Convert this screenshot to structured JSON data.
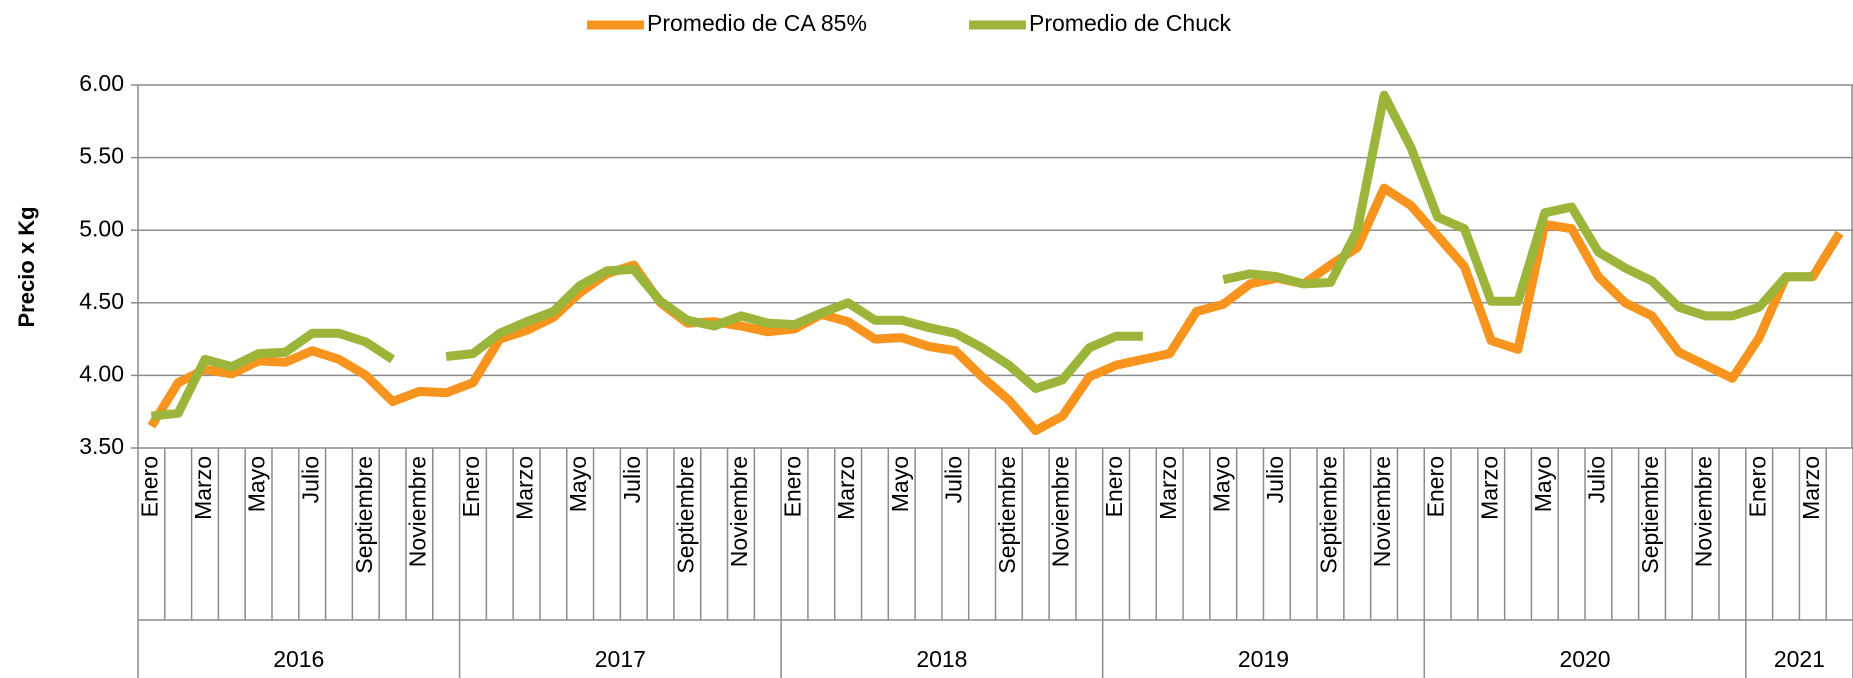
{
  "chart_data": {
    "type": "line",
    "y_label": "Precio x Kg",
    "categories": [
      "Enero",
      null,
      "Marzo",
      null,
      "Mayo",
      null,
      "Julio",
      null,
      "Septiembre",
      null,
      "Noviembre",
      null,
      "Enero",
      null,
      "Marzo",
      null,
      "Mayo",
      null,
      "Julio",
      null,
      "Septiembre",
      null,
      "Noviembre",
      null,
      "Enero",
      null,
      "Marzo",
      null,
      "Mayo",
      null,
      "Julio",
      null,
      "Septiembre",
      null,
      "Noviembre",
      null,
      "Enero",
      null,
      "Marzo",
      null,
      "Mayo",
      null,
      "Julio",
      null,
      "Septiembre",
      null,
      "Noviembre",
      null,
      "Enero",
      null,
      "Marzo",
      null,
      "Mayo",
      null,
      "Julio",
      null,
      "Septiembre",
      null,
      "Noviembre",
      null,
      "Enero",
      null,
      "Marzo",
      null
    ],
    "year_groups": [
      "2016",
      "2017",
      "2018",
      "2019",
      "2020",
      "2021"
    ],
    "series": [
      {
        "name": "Promedio de CA 85%",
        "color": "#f7941d",
        "values": [
          3.65,
          3.95,
          4.04,
          4.01,
          4.1,
          4.09,
          4.17,
          4.11,
          4.0,
          3.82,
          3.89,
          3.88,
          3.95,
          4.25,
          4.31,
          4.4,
          4.57,
          4.7,
          4.76,
          4.5,
          4.36,
          4.37,
          4.34,
          4.3,
          4.32,
          4.42,
          4.37,
          4.25,
          4.26,
          4.2,
          4.17,
          3.99,
          3.83,
          3.62,
          3.72,
          3.99,
          4.07,
          4.11,
          4.15,
          4.44,
          4.49,
          4.63,
          4.67,
          4.63,
          4.76,
          4.88,
          5.29,
          5.17,
          4.96,
          4.75,
          4.24,
          4.18,
          5.04,
          5.01,
          4.68,
          4.5,
          4.41,
          4.16,
          4.07,
          3.98,
          4.26,
          4.68,
          4.68,
          4.98
        ]
      },
      {
        "name": "Promedio de Chuck",
        "color": "#9bb53a",
        "values": [
          3.72,
          3.74,
          4.11,
          4.06,
          4.15,
          4.16,
          4.29,
          4.29,
          4.23,
          4.11,
          null,
          4.13,
          4.15,
          4.29,
          4.37,
          4.44,
          4.62,
          4.72,
          4.73,
          4.51,
          4.38,
          4.34,
          4.41,
          4.36,
          4.35,
          4.43,
          4.5,
          4.38,
          4.38,
          4.33,
          4.29,
          4.19,
          4.07,
          3.91,
          3.97,
          4.19,
          4.27,
          4.27,
          null,
          null,
          4.66,
          4.7,
          4.68,
          4.63,
          4.64,
          5.0,
          5.93,
          5.57,
          5.09,
          5.01,
          4.51,
          4.51,
          5.12,
          5.16,
          4.85,
          4.74,
          4.65,
          4.47,
          4.41,
          4.41,
          4.47,
          4.68,
          4.68,
          null
        ]
      }
    ],
    "ylim": [
      3.5,
      6.0
    ],
    "yticks": [
      {
        "value": 3.5,
        "label": "3.50"
      },
      {
        "value": 4.0,
        "label": "4.00"
      },
      {
        "value": 4.5,
        "label": "4.50"
      },
      {
        "value": 5.0,
        "label": "5.00"
      },
      {
        "value": 5.5,
        "label": "5.50"
      },
      {
        "value": 6.0,
        "label": "6.00"
      }
    ],
    "grid": true,
    "legend": "top"
  }
}
